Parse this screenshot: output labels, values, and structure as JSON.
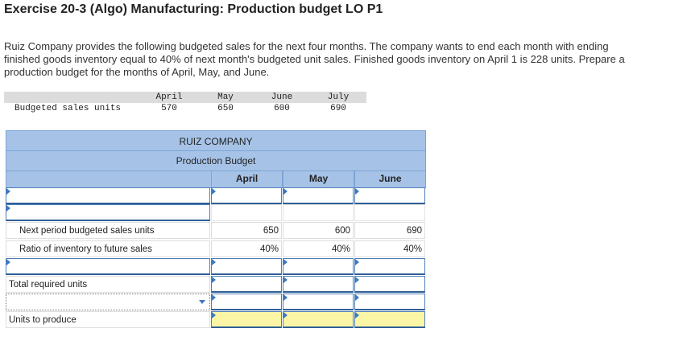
{
  "header": {
    "title": "Exercise 20-3 (Algo) Manufacturing: Production budget LO P1"
  },
  "instructions": [
    "Ruiz Company provides the following budgeted sales for the next four months. The company wants to end each month with ending",
    "finished goods inventory equal to 40% of next month's budgeted unit sales. Finished goods inventory on April 1 is 228 units. Prepare a",
    "production budget for the months of April, May, and June."
  ],
  "sales_table": {
    "columns": [
      "April",
      "May",
      "June",
      "July"
    ],
    "row_label": "Budgeted sales units",
    "values": [
      570,
      650,
      600,
      690
    ]
  },
  "budget": {
    "company": "RUIZ COMPANY",
    "subtitle": "Production Budget",
    "columns": [
      "April",
      "May",
      "June"
    ],
    "rows": [
      {
        "label": "Next period budgeted sales units",
        "values": [
          650,
          600,
          690
        ]
      },
      {
        "label": "Ratio of inventory to future sales",
        "values": [
          "40%",
          "40%",
          "40%"
        ]
      },
      {
        "label": "Total required units"
      },
      {
        "label": "Units to produce"
      }
    ]
  }
}
